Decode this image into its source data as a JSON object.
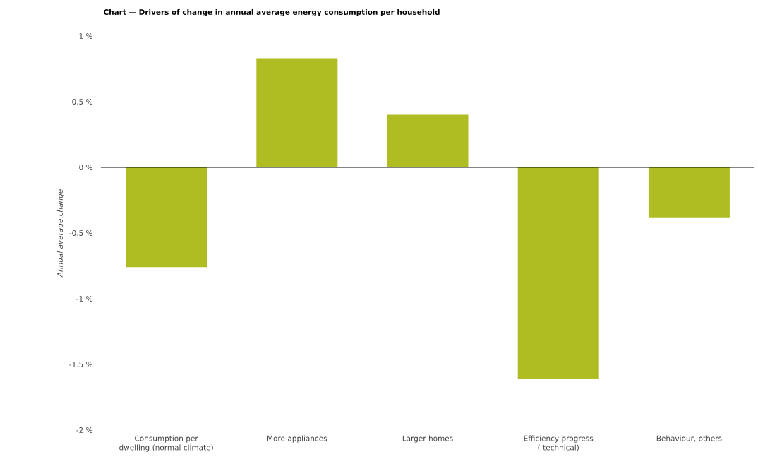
{
  "chart_data": {
    "type": "bar",
    "title": "Chart — Drivers of change in annual average energy consumption per household",
    "ylabel": "Annual average change",
    "categories": [
      "Consumption per dwelling (normal climate)",
      "More appliances",
      "Larger homes",
      "Efficiency progress ( technical)",
      "Behaviour, others"
    ],
    "values": [
      -0.76,
      0.83,
      0.4,
      -1.61,
      -0.38
    ],
    "color": "#afbd22",
    "ylim": [
      -2,
      1
    ],
    "yticks": [
      {
        "value": -2,
        "label": "-2 %"
      },
      {
        "value": -1.5,
        "label": "-1.5 %"
      },
      {
        "value": -1,
        "label": "-1 %"
      },
      {
        "value": -0.5,
        "label": "-0.5 %"
      },
      {
        "value": 0,
        "label": "0 %"
      },
      {
        "value": 0.5,
        "label": "0.5 %"
      },
      {
        "value": 1,
        "label": "1 %"
      }
    ],
    "ref_lines": [
      {
        "axis": "y",
        "value": 0,
        "color": "#000000"
      }
    ],
    "grid": false
  }
}
